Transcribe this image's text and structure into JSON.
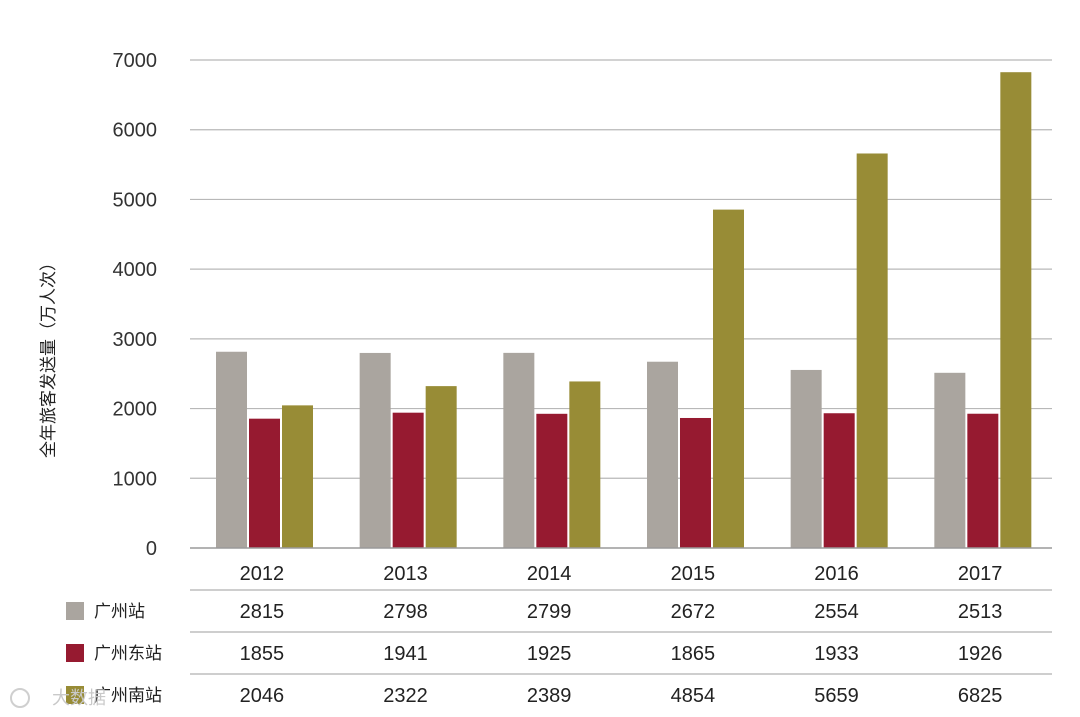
{
  "chart_data": {
    "type": "bar",
    "title": "",
    "xlabel": "",
    "ylabel": "全年旅客发送量（万人次）",
    "ylim": [
      0,
      7000
    ],
    "yticks": [
      0,
      1000,
      2000,
      3000,
      4000,
      5000,
      6000,
      7000
    ],
    "grid": true,
    "categories": [
      "2012",
      "2013",
      "2014",
      "2015",
      "2016",
      "2017"
    ],
    "series": [
      {
        "name": "广州站",
        "color": "#aaa59f",
        "values": [
          2815,
          2798,
          2799,
          2672,
          2554,
          2513
        ]
      },
      {
        "name": "广州东站",
        "color": "#961a30",
        "values": [
          1855,
          1941,
          1925,
          1865,
          1933,
          1926
        ]
      },
      {
        "name": "广州南站",
        "color": "#988c36",
        "values": [
          2046,
          2322,
          2389,
          4854,
          5659,
          6825
        ]
      }
    ],
    "data_table": true
  },
  "watermark": "大数据"
}
